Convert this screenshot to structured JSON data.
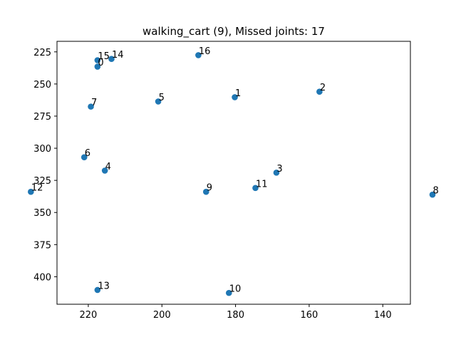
{
  "chart_data": {
    "type": "scatter",
    "title": "walking_cart (9), Missed joints: 17",
    "xlabel": "",
    "ylabel": "",
    "xlim": [
      228.5,
      132.5
    ],
    "ylim": [
      421.4,
      216.8
    ],
    "x_inverted": true,
    "y_inverted": true,
    "xticks": [
      220,
      200,
      180,
      160,
      140
    ],
    "yticks": [
      225,
      250,
      275,
      300,
      325,
      350,
      375,
      400
    ],
    "grid": false,
    "marker_color": "#1f77b4",
    "points": [
      {
        "label": "0",
        "x": 217.5,
        "y": 236.5
      },
      {
        "label": "1",
        "x": 180.2,
        "y": 260.3
      },
      {
        "label": "2",
        "x": 157.2,
        "y": 256.0
      },
      {
        "label": "3",
        "x": 168.9,
        "y": 319.0
      },
      {
        "label": "4",
        "x": 215.5,
        "y": 317.4
      },
      {
        "label": "5",
        "x": 201.0,
        "y": 263.6
      },
      {
        "label": "6",
        "x": 221.1,
        "y": 307.0
      },
      {
        "label": "7",
        "x": 219.3,
        "y": 267.6
      },
      {
        "label": "8",
        "x": 126.5,
        "y": 336.1
      },
      {
        "label": "9",
        "x": 188.0,
        "y": 333.9
      },
      {
        "label": "10",
        "x": 181.8,
        "y": 412.6
      },
      {
        "label": "11",
        "x": 174.6,
        "y": 330.9
      },
      {
        "label": "12",
        "x": 235.6,
        "y": 333.9
      },
      {
        "label": "13",
        "x": 217.5,
        "y": 410.3
      },
      {
        "label": "14",
        "x": 213.7,
        "y": 230.5
      },
      {
        "label": "15",
        "x": 217.5,
        "y": 231.5
      },
      {
        "label": "16",
        "x": 190.1,
        "y": 227.6
      }
    ]
  }
}
